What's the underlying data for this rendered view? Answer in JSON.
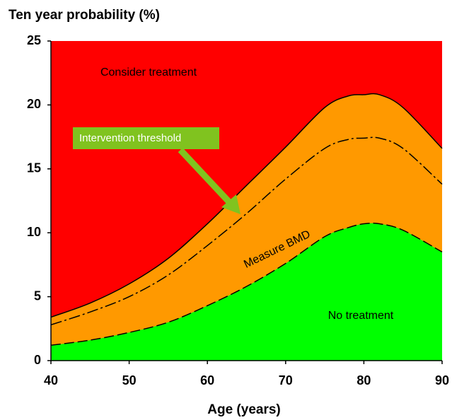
{
  "chart_data": {
    "type": "area",
    "ylabel": "Ten year probability (%)",
    "xlabel": "Age (years)",
    "x": [
      40,
      45,
      50,
      55,
      60,
      65,
      70,
      75,
      78,
      80,
      82,
      85,
      90
    ],
    "series": [
      {
        "values": [
          1.2,
          1.6,
          2.2,
          3.0,
          4.3,
          5.8,
          7.6,
          9.7,
          10.4,
          10.7,
          10.7,
          10.2,
          8.5
        ],
        "color": "#00ff00",
        "line_style": "dashed",
        "fill": true
      },
      {
        "values": [
          2.8,
          3.8,
          5.0,
          6.7,
          9.0,
          11.5,
          14.2,
          16.6,
          17.3,
          17.4,
          17.4,
          16.6,
          13.8
        ],
        "line_style": "dashdot",
        "fill": false
      },
      {
        "values": [
          3.4,
          4.5,
          6.0,
          8.0,
          10.7,
          13.7,
          16.7,
          19.8,
          20.7,
          20.8,
          20.8,
          19.8,
          16.6
        ],
        "color": "#ff9900",
        "line_style": "solid",
        "fill": true
      }
    ],
    "background_color": "#ff0000",
    "region_labels": [
      "Consider treatment",
      "Measure BMD",
      "No treatment"
    ],
    "threshold_label": "Intervention threshold",
    "xlim": [
      40,
      90
    ],
    "xticks": [
      40,
      50,
      60,
      70,
      80,
      90
    ],
    "ylim": [
      0,
      25
    ],
    "yticks": [
      0,
      5,
      10,
      15,
      20,
      25
    ]
  }
}
